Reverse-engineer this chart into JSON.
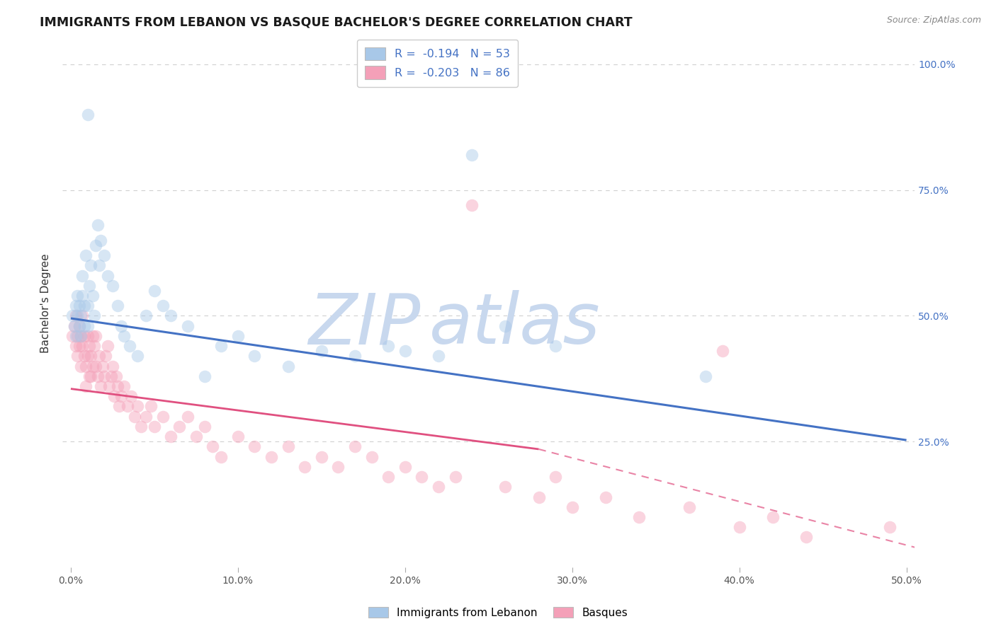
{
  "title": "IMMIGRANTS FROM LEBANON VS BASQUE BACHELOR'S DEGREE CORRELATION CHART",
  "source": "Source: ZipAtlas.com",
  "ylabel": "Bachelor's Degree",
  "xlim": [
    -0.005,
    0.505
  ],
  "ylim": [
    0.0,
    1.05
  ],
  "xtick_labels": [
    "0.0%",
    "10.0%",
    "20.0%",
    "30.0%",
    "40.0%",
    "50.0%"
  ],
  "xtick_vals": [
    0.0,
    0.1,
    0.2,
    0.3,
    0.4,
    0.5
  ],
  "ytick_labels": [
    "25.0%",
    "50.0%",
    "75.0%",
    "100.0%"
  ],
  "ytick_vals": [
    0.25,
    0.5,
    0.75,
    1.0
  ],
  "legend_label1": "Immigrants from Lebanon",
  "legend_label2": "Basques",
  "color_blue": "#a8c8e8",
  "color_pink": "#f4a0b8",
  "color_blue_line": "#4472c4",
  "color_pink_line": "#e05080",
  "watermark_zip_color": "#c8d8ee",
  "watermark_atlas_color": "#c8d8ee",
  "blue_trend_x0": 0.0,
  "blue_trend_y0": 0.495,
  "blue_trend_x1": 0.5,
  "blue_trend_y1": 0.253,
  "pink_trend_solid_x0": 0.0,
  "pink_trend_solid_y0": 0.355,
  "pink_trend_solid_x1": 0.28,
  "pink_trend_solid_y1": 0.235,
  "pink_trend_dash_x0": 0.28,
  "pink_trend_dash_y0": 0.235,
  "pink_trend_dash_x1": 0.505,
  "pink_trend_dash_y1": 0.04,
  "background_color": "#ffffff",
  "grid_color": "#d0d0d0",
  "title_fontsize": 12.5,
  "axis_label_fontsize": 11,
  "tick_fontsize": 10,
  "right_tick_color": "#4472c4",
  "scatter_size": 160,
  "scatter_alpha": 0.45,
  "blue_x": [
    0.001,
    0.002,
    0.003,
    0.003,
    0.004,
    0.004,
    0.005,
    0.005,
    0.006,
    0.006,
    0.007,
    0.007,
    0.008,
    0.008,
    0.009,
    0.01,
    0.01,
    0.011,
    0.012,
    0.013,
    0.014,
    0.015,
    0.016,
    0.017,
    0.018,
    0.02,
    0.022,
    0.025,
    0.028,
    0.03,
    0.032,
    0.035,
    0.04,
    0.045,
    0.05,
    0.055,
    0.06,
    0.07,
    0.08,
    0.09,
    0.1,
    0.11,
    0.13,
    0.15,
    0.17,
    0.19,
    0.2,
    0.22,
    0.24,
    0.26,
    0.29,
    0.38,
    0.01
  ],
  "blue_y": [
    0.5,
    0.48,
    0.52,
    0.46,
    0.5,
    0.54,
    0.48,
    0.52,
    0.46,
    0.5,
    0.54,
    0.58,
    0.52,
    0.48,
    0.62,
    0.52,
    0.48,
    0.56,
    0.6,
    0.54,
    0.5,
    0.64,
    0.68,
    0.6,
    0.65,
    0.62,
    0.58,
    0.56,
    0.52,
    0.48,
    0.46,
    0.44,
    0.42,
    0.5,
    0.55,
    0.52,
    0.5,
    0.48,
    0.38,
    0.44,
    0.46,
    0.42,
    0.4,
    0.43,
    0.42,
    0.44,
    0.43,
    0.42,
    0.82,
    0.48,
    0.44,
    0.38,
    0.9
  ],
  "pink_x": [
    0.001,
    0.002,
    0.003,
    0.003,
    0.004,
    0.004,
    0.005,
    0.005,
    0.006,
    0.006,
    0.007,
    0.007,
    0.008,
    0.008,
    0.009,
    0.009,
    0.01,
    0.01,
    0.011,
    0.011,
    0.012,
    0.012,
    0.013,
    0.013,
    0.014,
    0.015,
    0.015,
    0.016,
    0.017,
    0.018,
    0.019,
    0.02,
    0.021,
    0.022,
    0.023,
    0.024,
    0.025,
    0.026,
    0.027,
    0.028,
    0.029,
    0.03,
    0.032,
    0.034,
    0.036,
    0.038,
    0.04,
    0.042,
    0.045,
    0.048,
    0.05,
    0.055,
    0.06,
    0.065,
    0.07,
    0.075,
    0.08,
    0.085,
    0.09,
    0.1,
    0.11,
    0.12,
    0.13,
    0.14,
    0.15,
    0.16,
    0.17,
    0.18,
    0.19,
    0.2,
    0.21,
    0.22,
    0.23,
    0.24,
    0.26,
    0.28,
    0.29,
    0.3,
    0.32,
    0.34,
    0.37,
    0.39,
    0.4,
    0.42,
    0.44,
    0.49
  ],
  "pink_y": [
    0.46,
    0.48,
    0.5,
    0.44,
    0.46,
    0.42,
    0.48,
    0.44,
    0.46,
    0.4,
    0.44,
    0.5,
    0.42,
    0.46,
    0.4,
    0.36,
    0.46,
    0.42,
    0.38,
    0.44,
    0.42,
    0.38,
    0.46,
    0.4,
    0.44,
    0.46,
    0.4,
    0.38,
    0.42,
    0.36,
    0.4,
    0.38,
    0.42,
    0.44,
    0.36,
    0.38,
    0.4,
    0.34,
    0.38,
    0.36,
    0.32,
    0.34,
    0.36,
    0.32,
    0.34,
    0.3,
    0.32,
    0.28,
    0.3,
    0.32,
    0.28,
    0.3,
    0.26,
    0.28,
    0.3,
    0.26,
    0.28,
    0.24,
    0.22,
    0.26,
    0.24,
    0.22,
    0.24,
    0.2,
    0.22,
    0.2,
    0.24,
    0.22,
    0.18,
    0.2,
    0.18,
    0.16,
    0.18,
    0.72,
    0.16,
    0.14,
    0.18,
    0.12,
    0.14,
    0.1,
    0.12,
    0.43,
    0.08,
    0.1,
    0.06,
    0.08
  ]
}
